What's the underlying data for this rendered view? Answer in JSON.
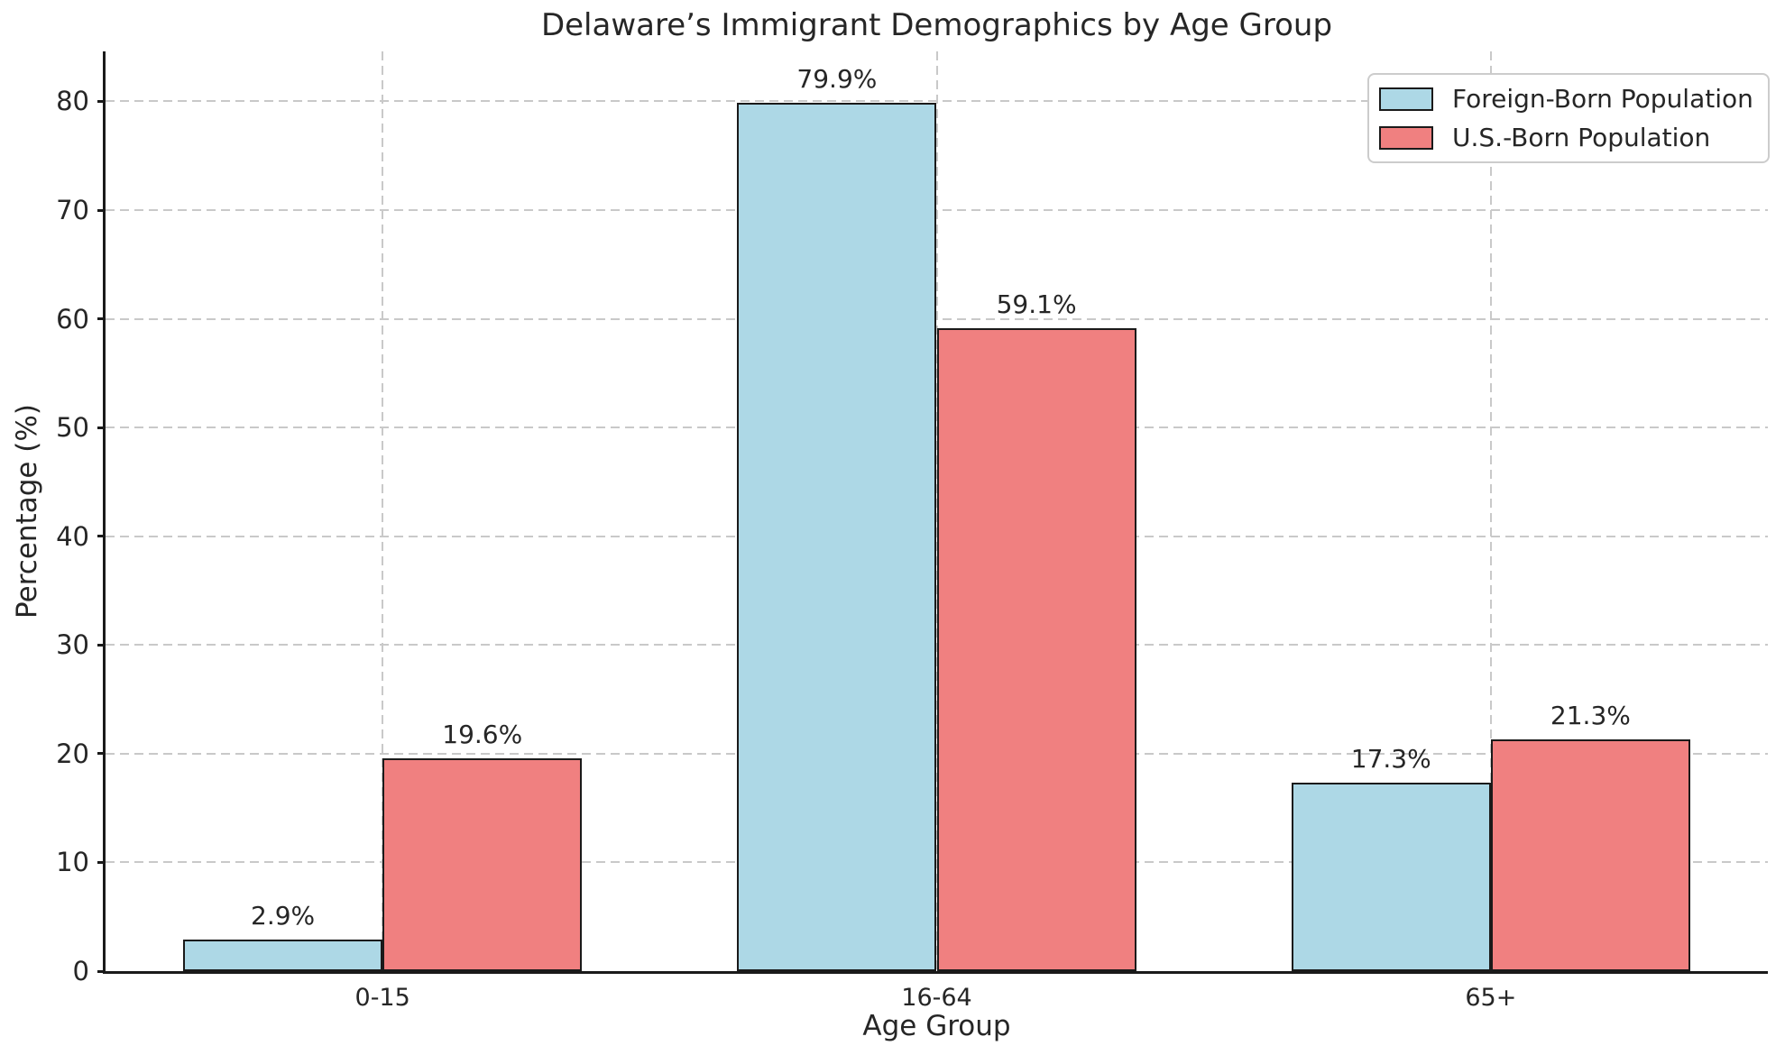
{
  "chart_data": {
    "type": "bar",
    "title": "Delaware’s Immigrant Demographics by Age Group",
    "xlabel": "Age Group",
    "ylabel": "Percentage (%)",
    "categories": [
      "0-15",
      "16-64",
      "65+"
    ],
    "series": [
      {
        "name": "Foreign-Born Population",
        "color": "#ADD8E6",
        "values": [
          2.9,
          79.9,
          17.3
        ],
        "labels": [
          "2.9%",
          "79.9%",
          "17.3%"
        ]
      },
      {
        "name": "U.S.-Born Population",
        "color": "#F08080",
        "values": [
          19.6,
          59.1,
          21.3
        ],
        "labels": [
          "19.6%",
          "59.1%",
          "21.3%"
        ]
      }
    ],
    "y_ticks": [
      0,
      10,
      20,
      30,
      40,
      50,
      60,
      70,
      80
    ],
    "ylim": [
      0,
      84.6
    ],
    "bar_width": 0.36,
    "grid": "dashed",
    "legend_position": "upper right",
    "bar_edge_color": "#1a1a1a",
    "grid_color": "#c9c9c9",
    "text_color": "#262626"
  }
}
